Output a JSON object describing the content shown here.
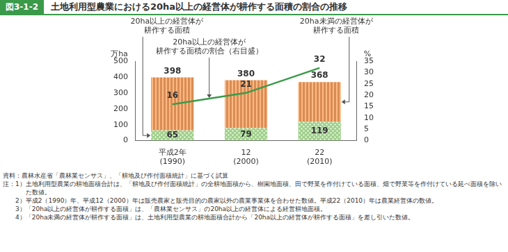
{
  "chart_data": {
    "type": "bar",
    "figure_label": "図3-1-2",
    "title": "土地利用型農業における20ha以上の経営体が耕作する面積の割合の推移",
    "categories": [
      "平成2年\n(1990)",
      "12\n(2000)",
      "22\n(2010)"
    ],
    "series": [
      {
        "name": "20ha以上の経営体が\n耕作する面積",
        "type": "bar",
        "color": "#9fd18a",
        "values": [
          65,
          79,
          119
        ]
      },
      {
        "name": "20ha未満の経営体が\n耕作する面積",
        "type": "bar",
        "color": "#d98c55",
        "values": [
          333,
          301,
          249
        ]
      },
      {
        "name": "20ha以上の経営体が\n耕作する面積の割合（右目盛）",
        "type": "line",
        "axis": "y2",
        "color": "#3a9a4a",
        "marker": "none",
        "values": [
          16,
          21,
          32
        ]
      }
    ],
    "totals": [
      398,
      380,
      368
    ],
    "stacked": true,
    "data_labels": true,
    "grid": false,
    "y_label": "万ha",
    "y2_label": "%",
    "ylim": [
      0,
      500
    ],
    "yticks": [
      0,
      100,
      200,
      300,
      400,
      500
    ],
    "y2lim": [
      0,
      35
    ],
    "y2ticks": [
      0,
      5,
      10,
      15,
      20,
      25,
      30,
      35
    ],
    "source": "資料：農林水産省「農林業センサス」、「耕地及び作付面積統計」に基づく試算",
    "notes_heading": "注：",
    "notes": [
      [
        "1）",
        "土地利用型農業の耕地面積合計は、「耕地及び作付面積統計」の全耕地面積から、樹園地面積、田で野菜を作付けている面積、畑で野菜等を作付けている延べ面積を除いた数値。"
      ],
      [
        "2）",
        "平成2（1990）年、平成12（2000）年は販売農家と販売目的の農家以外の農業事業体を合わせた数値。平成22（2010）年は農業経営体の数値。"
      ],
      [
        "3）",
        "「20ha以上の経営体が耕作する面積」は、「農林業センサス」の20ha以上の経営体による経営耕地面積。"
      ],
      [
        "4）",
        "「20ha未満の経営体が耕作する面積」は、土地利用型農業の耕地面積合計から「20ha以上の経営体が耕作する面積」を差し引いた数値。"
      ]
    ]
  }
}
